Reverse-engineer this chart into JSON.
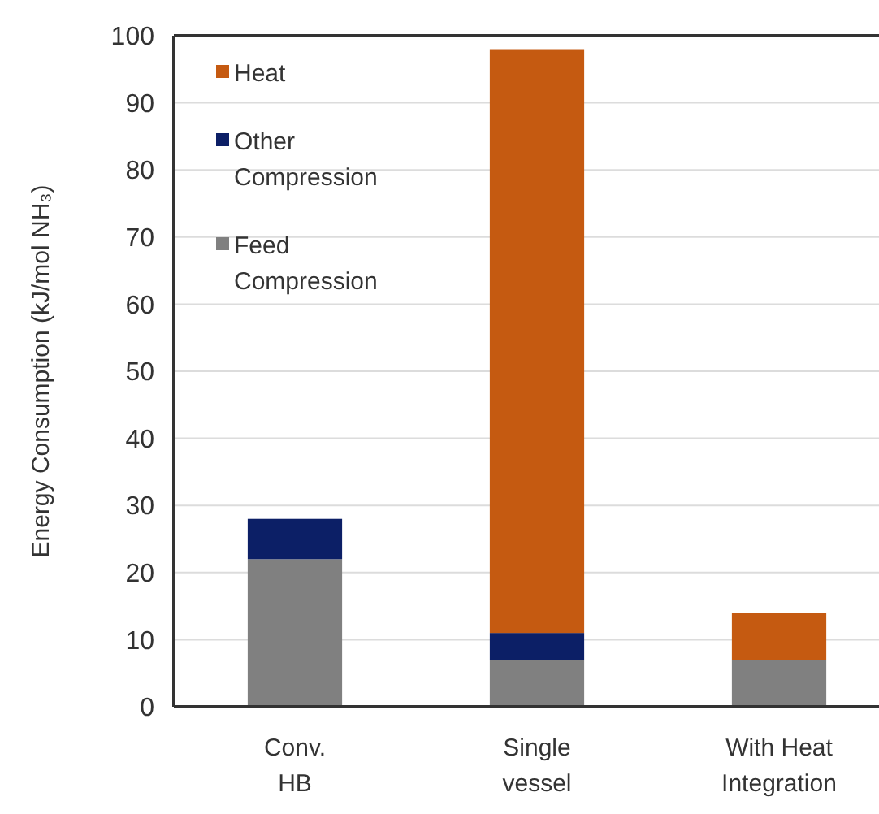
{
  "chart_data": {
    "type": "bar",
    "stacked": true,
    "ylabel": "Energy Consumption (kJ/mol NH₃)",
    "categories": [
      "Conv.\nHB",
      "Single\nvessel",
      "With Heat\nIntegration"
    ],
    "series": [
      {
        "name": "Feed\nCompression",
        "color": "#808080",
        "values": [
          22,
          7,
          7
        ]
      },
      {
        "name": "Other\nCompression",
        "color": "#0c1f66",
        "values": [
          6,
          4,
          0
        ]
      },
      {
        "name": "Heat",
        "color": "#c55a11",
        "values": [
          0,
          87,
          7
        ]
      }
    ],
    "ylim": [
      0,
      100
    ],
    "yticks": [
      0,
      10,
      20,
      30,
      40,
      50,
      60,
      70,
      80,
      90,
      100
    ],
    "grid": "y",
    "legend": "top left"
  }
}
